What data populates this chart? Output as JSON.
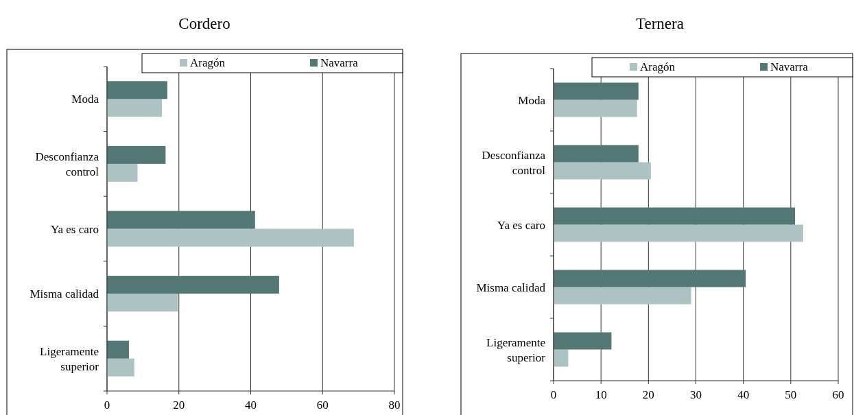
{
  "chart_data": [
    {
      "type": "bar",
      "title": "Cordero",
      "orientation": "horizontal",
      "categories": [
        "Moda",
        "Desconfianza control",
        "Ya es caro",
        "Misma calidad",
        "Ligeramente superior"
      ],
      "series": [
        {
          "name": "Aragón",
          "color": "#adc2c2",
          "values": [
            15.3,
            8.5,
            68.7,
            19.7,
            7.6
          ]
        },
        {
          "name": "Navarra",
          "color": "#527774",
          "values": [
            16.8,
            16.3,
            41.2,
            47.9,
            6.1
          ]
        }
      ],
      "xlim": [
        0,
        80
      ],
      "xticks": [
        0,
        20,
        40,
        60,
        80
      ],
      "grid": "x",
      "legend": "top right"
    },
    {
      "type": "bar",
      "title": "Ternera",
      "orientation": "horizontal",
      "categories": [
        "Moda",
        "Desconfianza control",
        "Ya es caro",
        "Misma calidad",
        "Ligeramente superior"
      ],
      "series": [
        {
          "name": "Aragón",
          "color": "#adc2c2",
          "values": [
            17.6,
            20.5,
            52.6,
            29.0,
            3.1
          ]
        },
        {
          "name": "Navarra",
          "color": "#527774",
          "values": [
            17.9,
            17.9,
            50.9,
            40.5,
            12.2
          ]
        }
      ],
      "xlim": [
        0,
        60
      ],
      "xticks": [
        0,
        10,
        20,
        30,
        40,
        50,
        60
      ],
      "grid": "x",
      "legend": "top right"
    }
  ]
}
